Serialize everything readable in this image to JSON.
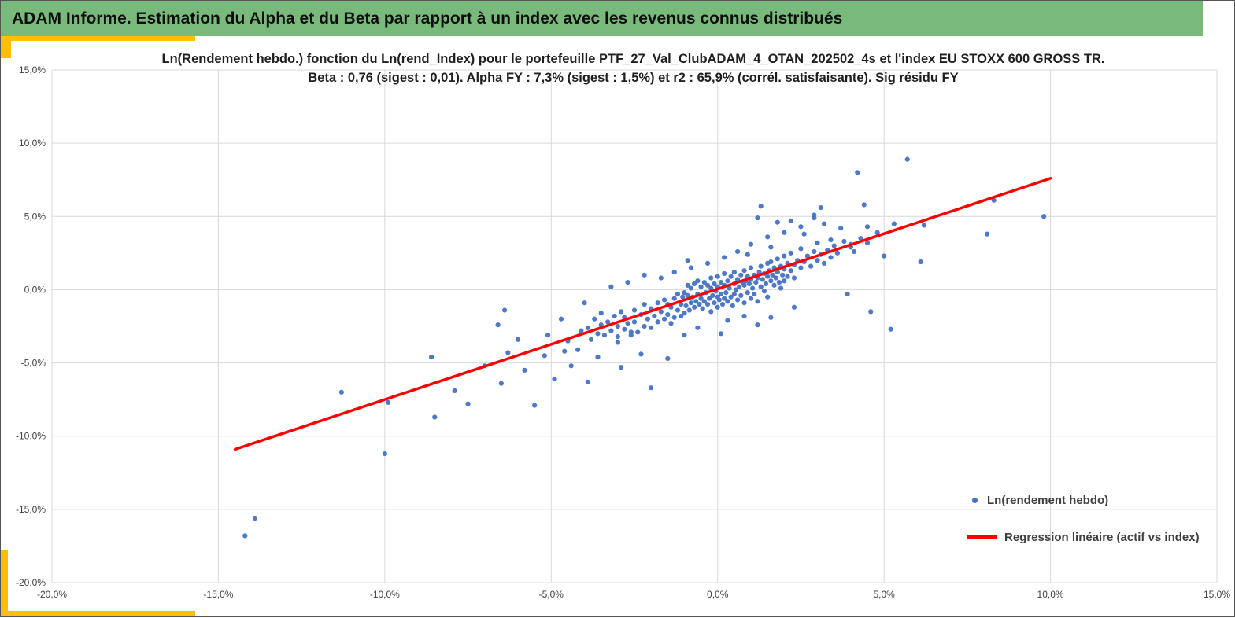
{
  "header": {
    "title": "ADAM Informe. Estimation du Alpha et du Beta par rapport à un index avec les revenus connus distribués"
  },
  "colors": {
    "header_bg": "#79BA7C",
    "accent_yellow": "#FFC000",
    "point": "#4472C4",
    "regression": "#FF0000",
    "grid": "#D9D9D9",
    "tick_text": "#404040"
  },
  "chart_data": {
    "type": "scatter",
    "title_line1": "Ln(Rendement hebdo.) fonction du Ln(rend_Index) pour le portefeuille PTF_27_Val_ClubADAM_4_OTAN_202502_4s et l'index EU STOXX 600 GROSS TR.",
    "title_line2": "Beta : 0,76 (sigest : 0,01).  Alpha FY : 7,3% (sigest : 1,5%) et r2 : 65,9% (corrél. satisfaisante). Sig résidu FY",
    "xlabel": "",
    "ylabel": "",
    "xlim": [
      -20,
      15
    ],
    "ylim": [
      -20,
      15
    ],
    "grid": true,
    "legend_position": "bottom-right-inside",
    "stats": {
      "beta": "0,76",
      "beta_sigest": "0,01",
      "alpha_fy": "7,3%",
      "alpha_sigest": "1,5%",
      "r2": "65,9%",
      "correlation_note": "corrél. satisfaisante"
    },
    "x_ticks": [
      {
        "v": -20,
        "label": "-20,0%"
      },
      {
        "v": -15,
        "label": "-15,0%"
      },
      {
        "v": -10,
        "label": "-10,0%"
      },
      {
        "v": -5,
        "label": "-5,0%"
      },
      {
        "v": 0,
        "label": "0,0%"
      },
      {
        "v": 5,
        "label": "5,0%"
      },
      {
        "v": 10,
        "label": "10,0%"
      },
      {
        "v": 15,
        "label": "15,0%"
      }
    ],
    "y_ticks": [
      {
        "v": 15,
        "label": "15,0%"
      },
      {
        "v": 10,
        "label": "10,0%"
      },
      {
        "v": 5,
        "label": "5,0%"
      },
      {
        "v": 0,
        "label": "0,0%"
      },
      {
        "v": -5,
        "label": "-5,0%"
      },
      {
        "v": -10,
        "label": "-10,0%"
      },
      {
        "v": -15,
        "label": "-15,0%"
      },
      {
        "v": -20,
        "label": "-20,0%"
      }
    ],
    "legend": [
      {
        "label": "Ln(rendement hebdo)",
        "marker": "dot",
        "color": "#4472C4"
      },
      {
        "label": "Regression linéaire (actif vs index)",
        "marker": "line",
        "color": "#FF0000"
      }
    ],
    "regression_line": {
      "x1": -14.5,
      "y1": -10.9,
      "x2": 10.0,
      "y2": 7.6
    },
    "points": [
      [
        -14.2,
        -16.8
      ],
      [
        -13.9,
        -15.6
      ],
      [
        -10.0,
        -11.2
      ],
      [
        -11.3,
        -7.0
      ],
      [
        -9.9,
        -7.7
      ],
      [
        -8.5,
        -8.7
      ],
      [
        -7.5,
        -7.8
      ],
      [
        -8.6,
        -4.6
      ],
      [
        -7.0,
        -5.2
      ],
      [
        -6.5,
        -6.4
      ],
      [
        -6.3,
        -4.3
      ],
      [
        -6.0,
        -3.4
      ],
      [
        -5.5,
        -7.9
      ],
      [
        -5.2,
        -4.5
      ],
      [
        -4.7,
        -2.0
      ],
      [
        -4.5,
        -3.5
      ],
      [
        -4.2,
        -4.1
      ],
      [
        -3.9,
        -6.3
      ],
      [
        -6.4,
        -1.4
      ],
      [
        -6.6,
        -2.4
      ],
      [
        -4.0,
        -0.9
      ],
      [
        5.7,
        8.9
      ],
      [
        4.2,
        8.0
      ],
      [
        8.3,
        6.1
      ],
      [
        9.8,
        5.0
      ],
      [
        8.1,
        3.8
      ],
      [
        6.2,
        4.4
      ],
      [
        5.3,
        4.5
      ],
      [
        4.5,
        4.3
      ],
      [
        5.0,
        2.3
      ],
      [
        6.1,
        1.9
      ],
      [
        5.2,
        -2.7
      ],
      [
        4.0,
        2.9
      ],
      [
        3.7,
        4.2
      ],
      [
        3.1,
        5.6
      ],
      [
        2.9,
        5.1
      ],
      [
        3.4,
        3.4
      ],
      [
        2.2,
        4.7
      ],
      [
        1.3,
        5.7
      ],
      [
        1.2,
        4.9
      ],
      [
        -2.0,
        -6.7
      ],
      [
        -2.3,
        -4.4
      ],
      [
        -1.5,
        -4.7
      ],
      [
        -3.0,
        -3.2
      ],
      [
        -2.6,
        -2.9
      ],
      [
        4.4,
        5.8
      ],
      [
        -1.0,
        -1.6
      ],
      [
        -1.0,
        -0.2
      ],
      [
        -0.95,
        -1.1
      ],
      [
        -0.9,
        -0.4
      ],
      [
        -0.9,
        0.3
      ],
      [
        -0.85,
        -1.4
      ],
      [
        -0.8,
        -0.9
      ],
      [
        -0.8,
        0.1
      ],
      [
        -0.75,
        -0.5
      ],
      [
        -0.7,
        -1.2
      ],
      [
        -0.7,
        0.4
      ],
      [
        -0.65,
        -0.8
      ],
      [
        -0.6,
        -0.3
      ],
      [
        -0.6,
        0.6
      ],
      [
        -0.55,
        -1.0
      ],
      [
        -0.5,
        -0.6
      ],
      [
        -0.5,
        0.2
      ],
      [
        -0.45,
        -1.3
      ],
      [
        -0.4,
        -0.8
      ],
      [
        -0.4,
        0.5
      ],
      [
        -0.35,
        -0.2
      ],
      [
        -0.3,
        -1.0
      ],
      [
        -0.3,
        0.3
      ],
      [
        -0.25,
        -0.6
      ],
      [
        -0.2,
        -1.5
      ],
      [
        -0.2,
        0.1
      ],
      [
        -0.2,
        0.8
      ],
      [
        -0.15,
        -0.4
      ],
      [
        -0.1,
        -0.9
      ],
      [
        -0.1,
        0.4
      ],
      [
        -0.05,
        -0.1
      ],
      [
        0.0,
        -1.2
      ],
      [
        0.0,
        -0.5
      ],
      [
        0.0,
        0.2
      ],
      [
        0.0,
        0.9
      ],
      [
        0.05,
        -0.7
      ],
      [
        0.1,
        -0.3
      ],
      [
        0.1,
        0.5
      ],
      [
        0.15,
        -1.0
      ],
      [
        0.2,
        -0.6
      ],
      [
        0.2,
        0.3
      ],
      [
        0.2,
        1.1
      ],
      [
        0.25,
        -0.2
      ],
      [
        0.3,
        -0.8
      ],
      [
        0.3,
        0.6
      ],
      [
        0.35,
        0.1
      ],
      [
        0.4,
        -0.5
      ],
      [
        0.4,
        0.9
      ],
      [
        0.45,
        -1.1
      ],
      [
        0.5,
        -0.3
      ],
      [
        0.5,
        0.4
      ],
      [
        0.5,
        1.2
      ],
      [
        0.55,
        0.0
      ],
      [
        0.6,
        -0.7
      ],
      [
        0.6,
        0.7
      ],
      [
        0.65,
        0.2
      ],
      [
        0.7,
        -0.4
      ],
      [
        0.7,
        1.0
      ],
      [
        0.75,
        0.5
      ],
      [
        0.8,
        -0.9
      ],
      [
        0.8,
        0.3
      ],
      [
        0.8,
        1.3
      ],
      [
        0.85,
        0.6
      ],
      [
        0.9,
        -0.2
      ],
      [
        0.9,
        0.9
      ],
      [
        0.95,
        0.4
      ],
      [
        1.0,
        -0.6
      ],
      [
        1.0,
        0.7
      ],
      [
        1.0,
        1.5
      ],
      [
        1.05,
        0.1
      ],
      [
        1.1,
        -0.3
      ],
      [
        1.1,
        1.0
      ],
      [
        1.15,
        0.5
      ],
      [
        1.2,
        -0.8
      ],
      [
        1.2,
        0.8
      ],
      [
        1.25,
        1.2
      ],
      [
        1.3,
        0.2
      ],
      [
        1.3,
        1.6
      ],
      [
        1.35,
        0.7
      ],
      [
        1.4,
        -0.1
      ],
      [
        1.4,
        1.1
      ],
      [
        1.45,
        0.4
      ],
      [
        1.5,
        0.9
      ],
      [
        1.5,
        1.8
      ],
      [
        1.5,
        -0.5
      ],
      [
        1.55,
        1.3
      ],
      [
        1.6,
        0.6
      ],
      [
        1.6,
        1.9
      ],
      [
        1.65,
        1.0
      ],
      [
        1.7,
        0.3
      ],
      [
        1.7,
        1.5
      ],
      [
        1.75,
        0.8
      ],
      [
        1.8,
        1.2
      ],
      [
        1.8,
        2.1
      ],
      [
        1.85,
        0.5
      ],
      [
        1.9,
        1.6
      ],
      [
        1.9,
        0.1
      ],
      [
        1.95,
        1.0
      ],
      [
        2.0,
        1.4
      ],
      [
        2.0,
        2.3
      ],
      [
        2.0,
        0.6
      ],
      [
        2.1,
        1.8
      ],
      [
        2.1,
        0.9
      ],
      [
        2.2,
        1.3
      ],
      [
        2.2,
        2.5
      ],
      [
        2.3,
        1.7
      ],
      [
        2.3,
        0.8
      ],
      [
        2.4,
        2.0
      ],
      [
        2.5,
        1.5
      ],
      [
        2.5,
        2.8
      ],
      [
        2.6,
        1.9
      ],
      [
        2.7,
        2.3
      ],
      [
        2.8,
        1.6
      ],
      [
        2.9,
        2.6
      ],
      [
        3.0,
        2.0
      ],
      [
        3.0,
        3.2
      ],
      [
        -3.9,
        -2.6
      ],
      [
        -3.8,
        -3.4
      ],
      [
        -3.7,
        -2.0
      ],
      [
        -3.6,
        -3.0
      ],
      [
        -3.5,
        -2.4
      ],
      [
        -3.5,
        -1.6
      ],
      [
        -3.4,
        -3.1
      ],
      [
        -3.3,
        -2.2
      ],
      [
        -3.2,
        -2.8
      ],
      [
        -3.1,
        -1.8
      ],
      [
        -3.0,
        -2.5
      ],
      [
        -3.0,
        -3.6
      ],
      [
        -2.9,
        -1.5
      ],
      [
        -2.8,
        -2.7
      ],
      [
        -2.8,
        -1.9
      ],
      [
        -2.7,
        -2.3
      ],
      [
        -2.6,
        -3.1
      ],
      [
        -2.5,
        -1.4
      ],
      [
        -2.5,
        -2.2
      ],
      [
        -2.4,
        -2.9
      ],
      [
        -2.3,
        -1.7
      ],
      [
        -2.2,
        -2.5
      ],
      [
        -2.2,
        -1.0
      ],
      [
        -2.1,
        -2.0
      ],
      [
        -2.0,
        -1.3
      ],
      [
        -2.0,
        -2.6
      ],
      [
        -1.9,
        -1.8
      ],
      [
        -1.8,
        -0.9
      ],
      [
        -1.8,
        -2.2
      ],
      [
        -1.7,
        -1.5
      ],
      [
        -1.6,
        -2.0
      ],
      [
        -1.6,
        -0.7
      ],
      [
        -1.5,
        -1.7
      ],
      [
        -1.5,
        -1.0
      ],
      [
        -1.4,
        -2.3
      ],
      [
        -1.4,
        -1.2
      ],
      [
        -1.3,
        -0.6
      ],
      [
        -1.3,
        -1.9
      ],
      [
        -1.2,
        -1.4
      ],
      [
        -1.2,
        -0.3
      ],
      [
        -1.1,
        -1.0
      ],
      [
        -1.1,
        -1.8
      ],
      [
        -1.05,
        -0.5
      ],
      [
        3.1,
        2.4
      ],
      [
        3.2,
        1.8
      ],
      [
        3.3,
        2.7
      ],
      [
        3.4,
        2.2
      ],
      [
        3.5,
        3.0
      ],
      [
        3.6,
        2.5
      ],
      [
        3.8,
        3.3
      ],
      [
        4.0,
        3.1
      ],
      [
        4.1,
        2.6
      ],
      [
        4.3,
        3.5
      ],
      [
        4.5,
        3.2
      ],
      [
        4.8,
        3.9
      ],
      [
        1.0,
        3.1
      ],
      [
        1.5,
        3.6
      ],
      [
        2.0,
        3.9
      ],
      [
        2.5,
        4.3
      ],
      [
        1.8,
        4.6
      ],
      [
        2.6,
        3.8
      ],
      [
        0.6,
        2.6
      ],
      [
        0.2,
        2.2
      ],
      [
        -0.3,
        1.8
      ],
      [
        3.2,
        4.5
      ],
      [
        2.9,
        4.9
      ],
      [
        1.6,
        2.9
      ],
      [
        0.9,
        2.4
      ],
      [
        0.3,
        -2.1
      ],
      [
        0.8,
        -1.8
      ],
      [
        1.2,
        -2.4
      ],
      [
        -0.6,
        -2.6
      ],
      [
        -1.0,
        -3.1
      ],
      [
        0.1,
        -3.0
      ],
      [
        1.6,
        -1.9
      ],
      [
        2.3,
        -1.2
      ],
      [
        3.9,
        -0.3
      ],
      [
        4.6,
        -1.5
      ],
      [
        -3.2,
        0.2
      ],
      [
        -2.7,
        0.5
      ],
      [
        -2.2,
        1.0
      ],
      [
        -1.7,
        0.8
      ],
      [
        -1.3,
        1.2
      ],
      [
        -0.8,
        1.5
      ],
      [
        -0.9,
        2.0
      ],
      [
        -4.4,
        -5.2
      ],
      [
        -4.9,
        -6.1
      ],
      [
        -5.8,
        -5.5
      ],
      [
        -7.9,
        -6.9
      ],
      [
        -4.1,
        -2.8
      ],
      [
        -4.6,
        -4.2
      ],
      [
        -5.1,
        -3.1
      ],
      [
        -3.6,
        -4.6
      ],
      [
        -2.9,
        -5.3
      ]
    ]
  }
}
